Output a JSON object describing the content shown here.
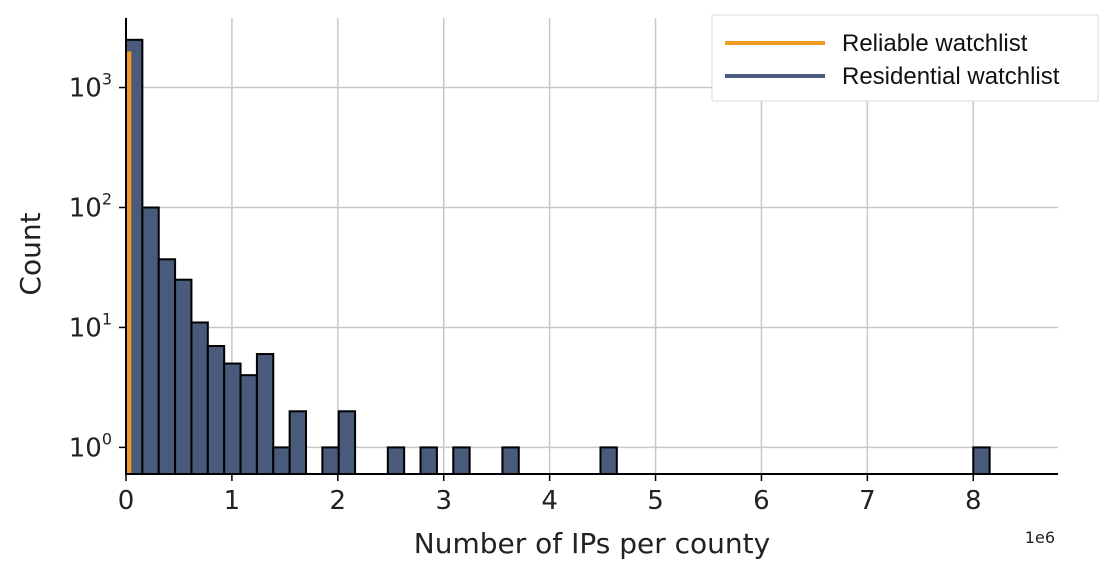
{
  "chart_data": {
    "type": "bar",
    "xlabel": "Number of IPs per county",
    "ylabel": "Count",
    "x_offset_label": "1e6",
    "yscale": "log",
    "xlim": [
      0,
      8.8
    ],
    "ylim": [
      0.6,
      3800
    ],
    "x_ticks": [
      {
        "value": 0,
        "label": "0"
      },
      {
        "value": 1,
        "label": "1"
      },
      {
        "value": 2,
        "label": "2"
      },
      {
        "value": 3,
        "label": "3"
      },
      {
        "value": 4,
        "label": "4"
      },
      {
        "value": 5,
        "label": "5"
      },
      {
        "value": 6,
        "label": "6"
      },
      {
        "value": 7,
        "label": "7"
      },
      {
        "value": 8,
        "label": "8"
      }
    ],
    "y_ticks": [
      {
        "value": 1,
        "base": "10",
        "exp": "0"
      },
      {
        "value": 10,
        "base": "10",
        "exp": "1"
      },
      {
        "value": 100,
        "base": "10",
        "exp": "2"
      },
      {
        "value": 1000,
        "base": "10",
        "exp": "3"
      }
    ],
    "grid": true,
    "legend_position": "top-right",
    "bin_width": 0.1545,
    "series": [
      {
        "name": "Reliable watchlist",
        "color": "#ef9a22",
        "bins": [
          {
            "x0": 0,
            "x1": 0.05,
            "count": 2000
          }
        ]
      },
      {
        "name": "Residential watchlist",
        "color": "#4a5a7a",
        "bins": [
          {
            "x0": 0.0,
            "count": 2500
          },
          {
            "x0": 0.1545,
            "count": 100
          },
          {
            "x0": 0.309,
            "count": 37
          },
          {
            "x0": 0.4635,
            "count": 25
          },
          {
            "x0": 0.618,
            "count": 11
          },
          {
            "x0": 0.7725,
            "count": 7
          },
          {
            "x0": 0.927,
            "count": 5
          },
          {
            "x0": 1.0815,
            "count": 4
          },
          {
            "x0": 1.236,
            "count": 6
          },
          {
            "x0": 1.3905,
            "count": 1
          },
          {
            "x0": 1.545,
            "count": 2
          },
          {
            "x0": 1.854,
            "count": 1
          },
          {
            "x0": 2.0085,
            "count": 2
          },
          {
            "x0": 2.472,
            "count": 1
          },
          {
            "x0": 2.781,
            "count": 1
          },
          {
            "x0": 3.09,
            "count": 1
          },
          {
            "x0": 3.554,
            "count": 1
          },
          {
            "x0": 4.48,
            "count": 1
          },
          {
            "x0": 8.0,
            "count": 1
          }
        ]
      }
    ]
  }
}
